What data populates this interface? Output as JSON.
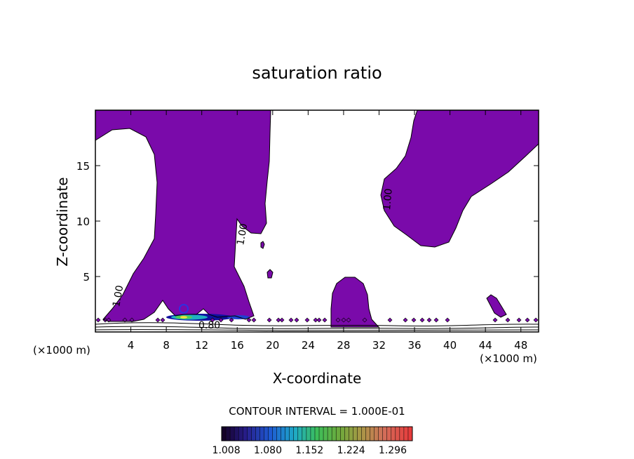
{
  "chart_data": {
    "type": "contour",
    "title": "saturation ratio",
    "xlabel": "X-coordinate",
    "ylabel": "Z-coordinate",
    "x_unit": "(×1000 m)",
    "xlim": [
      0,
      50
    ],
    "ylim": [
      0,
      20
    ],
    "x_ticks": [
      4,
      8,
      12,
      16,
      20,
      24,
      28,
      32,
      36,
      40,
      44,
      48
    ],
    "y_ticks": [
      5,
      10,
      15
    ],
    "contour_labels": [
      "1.00",
      "1.00",
      "1.00",
      "0.80"
    ],
    "contour_interval_text": "CONTOUR INTERVAL = 1.000E-01",
    "colorbar": {
      "ticks": [
        "1.008",
        "1.080",
        "1.152",
        "1.224",
        "1.296"
      ],
      "min": 1.0,
      "max": 1.33
    },
    "fill_color": "#7a0aaa",
    "regions": [
      {
        "name": "left-plume",
        "level": "above 1.00"
      },
      {
        "name": "right-plume",
        "level": "above 1.00"
      },
      {
        "name": "central-dome",
        "level": "above 1.00"
      },
      {
        "name": "lower-hotspot",
        "level": "up to ~1.30"
      }
    ]
  }
}
